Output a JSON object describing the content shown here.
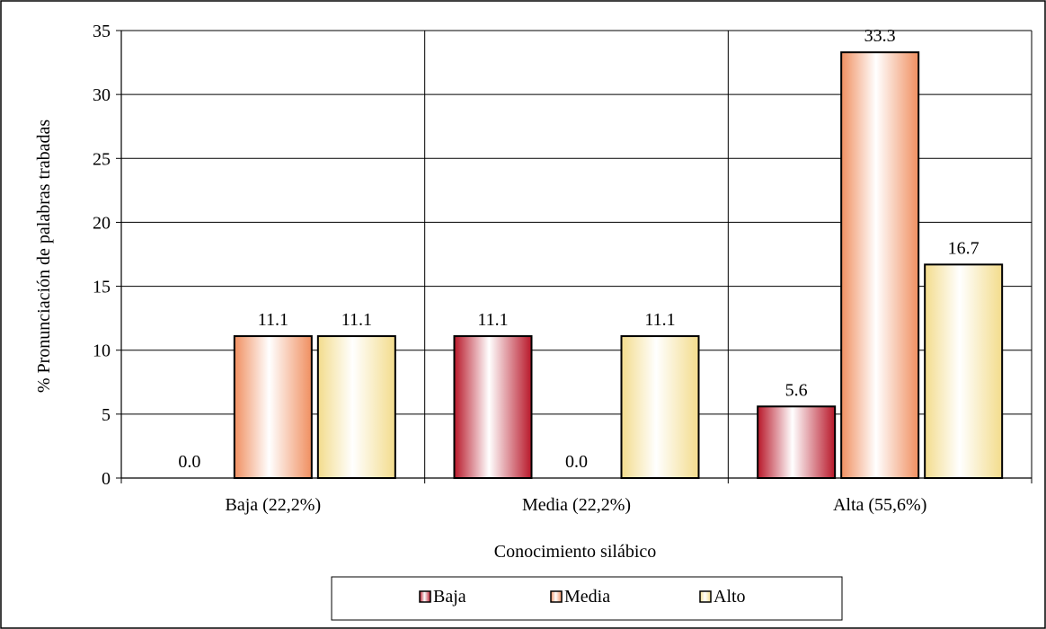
{
  "chart_data": {
    "type": "bar",
    "title": "",
    "xlabel": "Conocimiento silábico",
    "ylabel": "% Pronunciación de palabras trabadas",
    "categories": [
      "Baja (22,2%)",
      "Media (22,2%)",
      "Alta (55,6%)"
    ],
    "series": [
      {
        "name": "Baja",
        "values": [
          0.0,
          11.1,
          5.6
        ],
        "color": "#b8182a",
        "labels": [
          "0.0",
          "11.1",
          "5.6"
        ]
      },
      {
        "name": "Media",
        "values": [
          11.1,
          0.0,
          33.3
        ],
        "color": "#f08f60",
        "labels": [
          "11.1",
          "0.0",
          "33.3"
        ]
      },
      {
        "name": "Alto",
        "values": [
          11.1,
          11.1,
          16.7
        ],
        "color": "#f3dc8c",
        "labels": [
          "11.1",
          "11.1",
          "16.7"
        ]
      }
    ],
    "ylim": [
      0,
      35
    ],
    "yticks": [
      0,
      5,
      10,
      15,
      20,
      25,
      30,
      35
    ],
    "grid": true,
    "legend": "bottom"
  }
}
